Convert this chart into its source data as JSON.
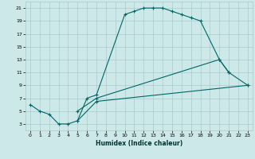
{
  "title": "",
  "xlabel": "Humidex (Indice chaleur)",
  "bg_color": "#cce8e8",
  "grid_color": "#aacccc",
  "line_color": "#006666",
  "xlim": [
    -0.5,
    23.5
  ],
  "ylim": [
    2,
    22
  ],
  "xticks": [
    0,
    1,
    2,
    3,
    4,
    5,
    6,
    7,
    8,
    9,
    10,
    11,
    12,
    13,
    14,
    15,
    16,
    17,
    18,
    19,
    20,
    21,
    22,
    23
  ],
  "yticks": [
    3,
    5,
    7,
    9,
    11,
    13,
    15,
    17,
    19,
    21
  ],
  "curve1": {
    "x": [
      0,
      1,
      2,
      3,
      4,
      5,
      6,
      7,
      10,
      11,
      12,
      13,
      14,
      15,
      16,
      17,
      18,
      20,
      21
    ],
    "y": [
      6,
      5,
      4.5,
      3,
      3,
      3.5,
      7,
      7.5,
      20,
      20.5,
      21,
      21,
      21,
      20.5,
      20,
      19.5,
      19,
      13,
      11
    ]
  },
  "curve2": {
    "x": [
      5,
      7,
      20,
      21,
      23
    ],
    "y": [
      5,
      7,
      13,
      11,
      9
    ]
  },
  "curve3": {
    "x": [
      5,
      7,
      23
    ],
    "y": [
      3.5,
      6.5,
      9
    ]
  }
}
